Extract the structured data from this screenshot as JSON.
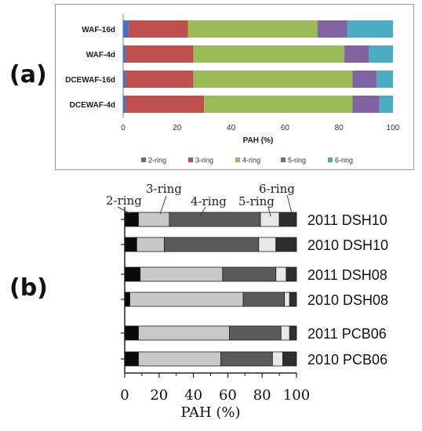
{
  "panel_labels": {
    "a": "(a)",
    "b": "(b)"
  },
  "chart_data": [
    {
      "type": "bar",
      "orientation": "horizontal",
      "stacked": true,
      "categories": [
        "WAF-16d",
        "WAF-4d",
        "DCEWAF-16d",
        "DCEWAF-4d"
      ],
      "series": [
        {
          "name": "2-ring",
          "color": "#4472c4",
          "values": [
            2,
            1,
            1,
            1
          ]
        },
        {
          "name": "3-ring",
          "color": "#c0504d",
          "values": [
            22,
            25,
            25,
            29
          ]
        },
        {
          "name": "4-ring",
          "color": "#9bbb59",
          "values": [
            48,
            56,
            59,
            55
          ]
        },
        {
          "name": "5-ring",
          "color": "#8064a2",
          "values": [
            11,
            9,
            9,
            10
          ]
        },
        {
          "name": "6-ring",
          "color": "#4bacc6",
          "values": [
            17,
            9,
            6,
            5
          ]
        }
      ],
      "xlabel": "PAH (%)",
      "xlim": [
        0,
        100
      ],
      "xticks": [
        "0",
        "20",
        "40",
        "60",
        "80",
        "100"
      ],
      "legend": "bottom"
    },
    {
      "type": "bar",
      "orientation": "horizontal",
      "stacked": true,
      "categories": [
        "2011  DSH10",
        "2010 DSH10",
        "2011 DSH08",
        "2010 DSH08",
        "2011 PCB06",
        "2010 PCB06"
      ],
      "series": [
        {
          "name": "2-ring",
          "color": "#0a0a0a",
          "values": [
            8,
            7,
            9,
            3,
            8,
            8
          ]
        },
        {
          "name": "3-ring",
          "color": "#c8c8c8",
          "values": [
            18,
            16,
            48,
            66,
            53,
            48
          ]
        },
        {
          "name": "4-ring",
          "color": "#5a5a5a",
          "values": [
            53,
            55,
            31,
            24,
            30,
            30
          ]
        },
        {
          "name": "5-ring",
          "color": "#e8e8e8",
          "values": [
            11,
            10,
            6,
            3,
            5,
            6
          ]
        },
        {
          "name": "6-ring",
          "color": "#2e2e2e",
          "values": [
            10,
            12,
            6,
            4,
            4,
            8
          ]
        }
      ],
      "xlabel": "PAH (%)",
      "xlim": [
        0,
        100
      ],
      "xticks": [
        "0",
        "20",
        "40",
        "60",
        "80",
        "100"
      ],
      "annotations": [
        "2-ring",
        "3-ring",
        "4-ring",
        "5-ring",
        "6-ring"
      ]
    }
  ]
}
